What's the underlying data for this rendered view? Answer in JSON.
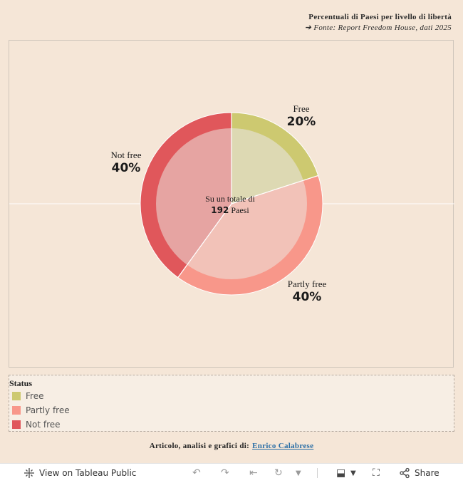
{
  "header": {
    "title": "Percentuali di Paesi per livello di libertà",
    "subtitle": "➔ Fonte: Report Freedom House, dati 2025"
  },
  "chart_data": {
    "type": "pie",
    "categories": [
      "Free",
      "Partly free",
      "Not free"
    ],
    "values": [
      20,
      40,
      40
    ],
    "value_labels": [
      "20%",
      "40%",
      "40%"
    ],
    "center": {
      "line1": "Su un totale di",
      "count": "192",
      "unit": "Paesi"
    }
  },
  "colors": {
    "free": "#cdc970",
    "partly_free": "#f8978a",
    "not_free": "#e0575b",
    "free_inner": "#ddd9b3",
    "partly_free_inner": "#f2c2b8",
    "not_free_inner": "#e6a4a2"
  },
  "legend": {
    "title": "Status",
    "items": [
      "Free",
      "Partly free",
      "Not free"
    ]
  },
  "credits": {
    "text": "Articolo, analisi e grafici di:",
    "author": "Enrico Calabrese"
  },
  "toolbar": {
    "view_label": "View on Tableau Public",
    "share_label": "Share"
  }
}
